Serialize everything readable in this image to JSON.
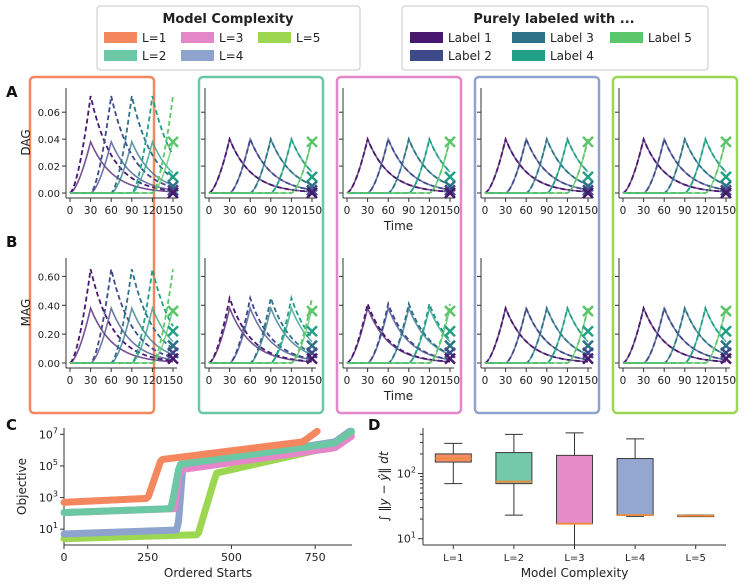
{
  "colors": {
    "L1": "#f5875f",
    "L2": "#6cc7a5",
    "L3": "#e486c7",
    "L4": "#8fa3cf",
    "L5": "#9dd752",
    "label1": "#47186e",
    "label2": "#3f4a8a",
    "label3": "#2e7288",
    "label4": "#22a085",
    "label5": "#5cc66a",
    "median": "#f08a3b"
  },
  "legends": {
    "complexity": {
      "title": "Model Complexity",
      "items": [
        {
          "label": "L=1",
          "color_key": "L1"
        },
        {
          "label": "L=3",
          "color_key": "L3"
        },
        {
          "label": "L=5",
          "color_key": "L5"
        },
        {
          "label": "L=2",
          "color_key": "L2"
        },
        {
          "label": "L=4",
          "color_key": "L4"
        }
      ]
    },
    "labels": {
      "title": "Purely labeled with ...",
      "items": [
        {
          "label": "Label 1",
          "color_key": "label1"
        },
        {
          "label": "Label 3",
          "color_key": "label3"
        },
        {
          "label": "Label 5",
          "color_key": "label5"
        },
        {
          "label": "Label 2",
          "color_key": "label2"
        },
        {
          "label": "Label 4",
          "color_key": "label4"
        }
      ]
    }
  },
  "panel_letters": {
    "a": "A",
    "b": "B",
    "c": "C",
    "d": "D"
  },
  "chart_data": [
    {
      "id": "A",
      "type": "line",
      "ylabel": "DAG",
      "xlabel": "Time",
      "xticks": [
        0,
        30,
        60,
        90,
        120,
        150
      ],
      "yticks": [
        "0.00",
        "0.02",
        "0.04",
        "0.06"
      ],
      "xlim": [
        0,
        150
      ],
      "ylim": [
        0,
        0.075
      ],
      "peaks": [
        {
          "label": "Label 1",
          "start": 0,
          "peak_t": 30
        },
        {
          "label": "Label 2",
          "start": 30,
          "peak_t": 60
        },
        {
          "label": "Label 3",
          "start": 60,
          "peak_t": 90
        },
        {
          "label": "Label 4",
          "start": 90,
          "peak_t": 120
        },
        {
          "label": "Label 5",
          "start": 120,
          "peak_t": 150
        }
      ],
      "series": [
        {
          "complexity": "L=1",
          "dashed_peak": 0.072,
          "solid_peak": 0.038
        },
        {
          "complexity": "L=2",
          "dashed_peak": 0.04,
          "solid_peak": 0.04
        },
        {
          "complexity": "L=3",
          "dashed_peak": 0.04,
          "solid_peak": 0.04
        },
        {
          "complexity": "L=4",
          "dashed_peak": 0.04,
          "solid_peak": 0.04
        },
        {
          "complexity": "L=5",
          "dashed_peak": 0.04,
          "solid_peak": 0.04
        }
      ],
      "end_markers": [
        0.038,
        0.012,
        0.005,
        0.002,
        0.0
      ]
    },
    {
      "id": "B",
      "type": "line",
      "ylabel": "MAG",
      "xlabel": "Time",
      "xticks": [
        0,
        30,
        60,
        90,
        120,
        150
      ],
      "yticks": [
        "0.00",
        "0.20",
        "0.40",
        "0.60"
      ],
      "xlim": [
        0,
        150
      ],
      "ylim": [
        0,
        0.7
      ],
      "peaks": [
        {
          "label": "Label 1",
          "start": 0,
          "peak_t": 30
        },
        {
          "label": "Label 2",
          "start": 30,
          "peak_t": 60
        },
        {
          "label": "Label 3",
          "start": 60,
          "peak_t": 90
        },
        {
          "label": "Label 4",
          "start": 90,
          "peak_t": 120
        },
        {
          "label": "Label 5",
          "start": 120,
          "peak_t": 150
        }
      ],
      "series": [
        {
          "complexity": "L=1",
          "dashed_peak": 0.65,
          "solid_peak": 0.38
        },
        {
          "complexity": "L=2",
          "dashed_peak": 0.45,
          "solid_peak": 0.38
        },
        {
          "complexity": "L=3",
          "dashed_peak": 0.41,
          "solid_peak": 0.38
        },
        {
          "complexity": "L=4",
          "dashed_peak": 0.38,
          "solid_peak": 0.38
        },
        {
          "complexity": "L=5",
          "dashed_peak": 0.38,
          "solid_peak": 0.38
        }
      ],
      "end_markers": [
        0.36,
        0.22,
        0.12,
        0.07,
        0.03
      ]
    },
    {
      "id": "C",
      "type": "scatter",
      "xlabel": "Ordered Starts",
      "ylabel": "Objective",
      "xticks": [
        0,
        250,
        500,
        750
      ],
      "yticks": [
        "10^1",
        "10^3",
        "10^5",
        "10^7"
      ],
      "xlim": [
        0,
        860
      ],
      "ylim_log10": [
        0,
        7.4
      ],
      "series": [
        {
          "complexity": "L=1",
          "low": 2.7,
          "low_end_x": 250,
          "rise_to_x": 290,
          "high_start": 5.4,
          "high_end": 6.65,
          "n": 760
        },
        {
          "complexity": "L=2",
          "low": 2.05,
          "low_end_x": 320,
          "rise_to_x": 345,
          "high_start": 5.1,
          "high_end": 6.6,
          "n": 860
        },
        {
          "complexity": "L=3",
          "low": 2.05,
          "low_end_x": 330,
          "rise_to_x": 345,
          "high_start": 4.75,
          "high_end": 6.3,
          "n": 860
        },
        {
          "complexity": "L=4",
          "low": 0.7,
          "low_end_x": 340,
          "rise_to_x": 355,
          "high_start": 5.0,
          "high_end": 6.7,
          "n": 860
        },
        {
          "complexity": "L=5",
          "low": 0.4,
          "low_end_x": 400,
          "rise_to_x": 455,
          "high_start": 4.55,
          "high_end": 6.5,
          "n": 860
        }
      ]
    },
    {
      "id": "D",
      "type": "box",
      "xlabel": "Model Complexity",
      "ylabel": "∫ ‖y − ŷ‖ dt",
      "categories": [
        "L=1",
        "L=2",
        "L=3",
        "L=4",
        "L=5"
      ],
      "yticks": [
        "10^1",
        "10^2"
      ],
      "ylim": [
        8,
        500
      ],
      "boxes": [
        {
          "label": "L=1",
          "min": 70,
          "q1": 150,
          "median": 170,
          "q3": 200,
          "max": 290
        },
        {
          "label": "L=2",
          "min": 23,
          "q1": 70,
          "median": 75,
          "q3": 210,
          "max": 400
        },
        {
          "label": "L=3",
          "min": 8,
          "q1": 17,
          "median": 17,
          "q3": 190,
          "max": 420
        },
        {
          "label": "L=4",
          "min": 22,
          "q1": 23,
          "median": 23,
          "q3": 170,
          "max": 340
        },
        {
          "label": "L=5",
          "min": 22,
          "q1": 22,
          "median": 22.5,
          "q3": 23,
          "max": 23
        }
      ]
    }
  ]
}
